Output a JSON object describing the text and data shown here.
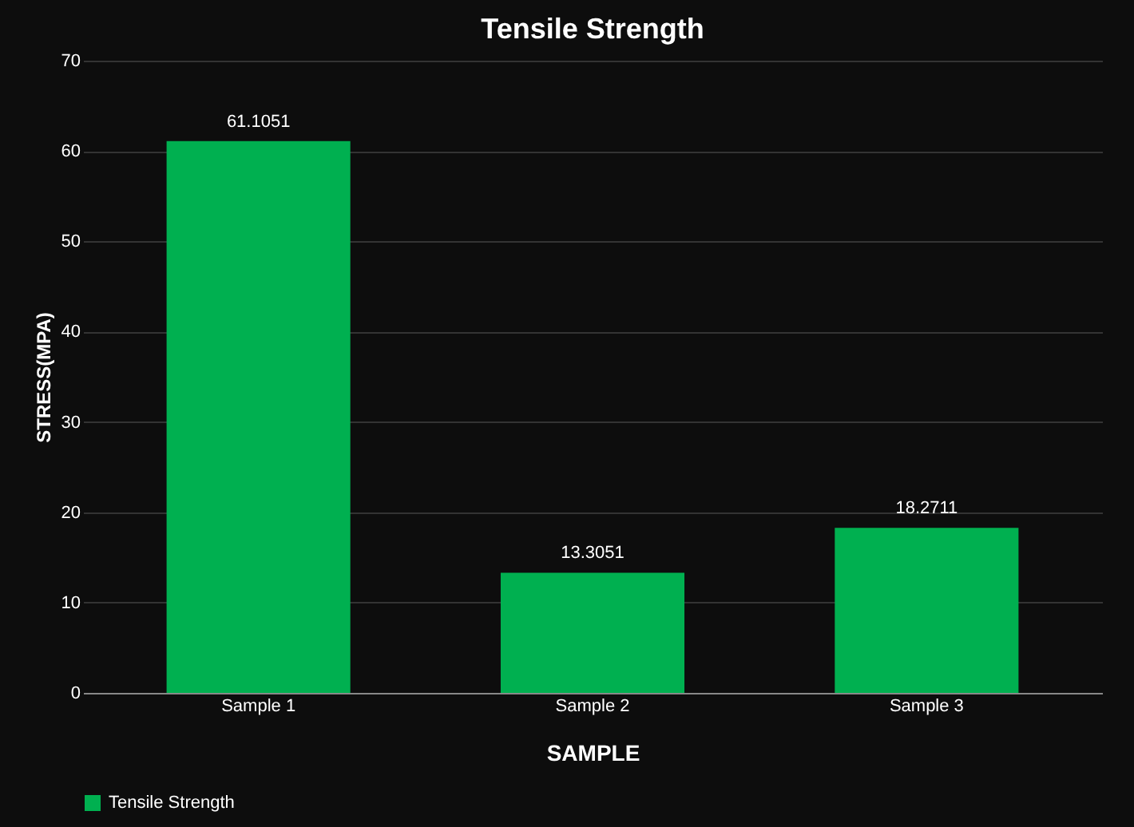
{
  "chart_data": {
    "type": "bar",
    "title": "Tensile Strength",
    "xlabel": "SAMPLE",
    "ylabel": "STRESS(MPA)",
    "categories": [
      "Sample 1",
      "Sample 2",
      "Sample 3"
    ],
    "series": [
      {
        "name": "Tensile Strength",
        "color": "#00b050",
        "values": [
          61.1051,
          13.3051,
          18.2711
        ]
      }
    ],
    "ylim": [
      0,
      70
    ],
    "yticks": [
      0,
      10,
      20,
      30,
      40,
      50,
      60,
      70
    ],
    "grid": "y",
    "data_labels": true,
    "legend": "bottom"
  }
}
